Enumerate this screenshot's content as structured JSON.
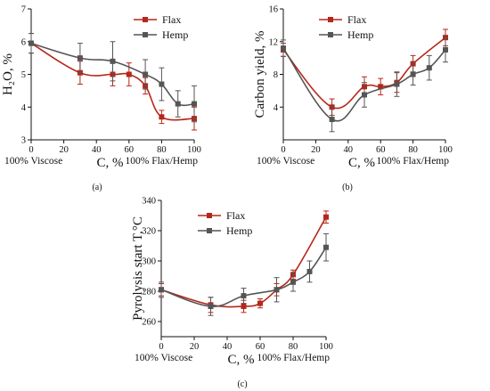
{
  "colors": {
    "flax": "#b5271b",
    "hemp": "#555555",
    "axis": "#111111"
  },
  "chart_data": [
    {
      "type": "line",
      "panel_label": "(a)",
      "xlabel": "C, %",
      "ylabel": "H₂O, %",
      "x_note_left": "100% Viscose",
      "x_note_right": "100% Flax/Hemp",
      "xlim": [
        0,
        100
      ],
      "ylim": [
        3,
        7
      ],
      "xticks": [
        0,
        20,
        40,
        60,
        80,
        100
      ],
      "yticks": [
        3,
        4,
        5,
        6,
        7
      ],
      "legend_position": "top-right",
      "series": [
        {
          "name": "Flax",
          "x": [
            0,
            30,
            50,
            60,
            70,
            80,
            100
          ],
          "y": [
            5.95,
            5.05,
            5.0,
            5.0,
            4.65,
            3.7,
            3.65
          ],
          "err": [
            0.3,
            0.35,
            0.35,
            0.35,
            0.25,
            0.2,
            0.35
          ]
        },
        {
          "name": "Hemp",
          "x": [
            0,
            30,
            50,
            70,
            80,
            90,
            100
          ],
          "y": [
            5.95,
            5.5,
            5.4,
            5.0,
            4.7,
            4.1,
            4.1
          ],
          "err": [
            0.3,
            0.45,
            0.6,
            0.45,
            0.5,
            0.4,
            0.55
          ]
        }
      ]
    },
    {
      "type": "line",
      "panel_label": "(b)",
      "xlabel": "C, %",
      "ylabel": "Carbon yield, %",
      "x_note_left": "100% Viscose",
      "x_note_right": "100% Flax/Hemp",
      "xlim": [
        0,
        100
      ],
      "ylim": [
        0,
        16
      ],
      "xticks": [
        0,
        20,
        40,
        60,
        80,
        100
      ],
      "yticks": [
        4,
        8,
        12,
        16
      ],
      "legend_position": "top-right",
      "series": [
        {
          "name": "Flax",
          "x": [
            0,
            30,
            50,
            60,
            70,
            80,
            100
          ],
          "y": [
            11.0,
            4.0,
            6.5,
            6.5,
            7.0,
            9.3,
            12.5
          ],
          "err": [
            0.8,
            1.0,
            1.2,
            1.0,
            1.2,
            1.0,
            1.0
          ]
        },
        {
          "name": "Hemp",
          "x": [
            0,
            30,
            50,
            70,
            80,
            90,
            100
          ],
          "y": [
            11.2,
            2.5,
            5.5,
            6.8,
            8.0,
            8.8,
            11.0
          ],
          "err": [
            1.0,
            1.5,
            1.5,
            1.5,
            1.3,
            1.5,
            1.5
          ]
        }
      ]
    },
    {
      "type": "line",
      "panel_label": "(c)",
      "xlabel": "C, %",
      "ylabel": "Pyrolysis start T,°C",
      "x_note_left": "100% Viscose",
      "x_note_right": "100% Flax/Hemp",
      "xlim": [
        0,
        100
      ],
      "ylim": [
        250,
        340
      ],
      "xticks": [
        0,
        20,
        40,
        60,
        80,
        100
      ],
      "yticks": [
        260,
        280,
        300,
        320,
        340
      ],
      "legend_position": "top-left",
      "series": [
        {
          "name": "Flax",
          "x": [
            0,
            30,
            50,
            60,
            70,
            80,
            100
          ],
          "y": [
            281,
            271,
            270,
            272,
            281,
            291,
            329
          ],
          "err": [
            4,
            5,
            4,
            3,
            4,
            3,
            4
          ]
        },
        {
          "name": "Hemp",
          "x": [
            0,
            30,
            50,
            70,
            80,
            90,
            100
          ],
          "y": [
            281,
            270,
            277,
            281,
            286,
            293,
            309
          ],
          "err": [
            5,
            6,
            5,
            8,
            6,
            7,
            9
          ]
        }
      ]
    }
  ]
}
